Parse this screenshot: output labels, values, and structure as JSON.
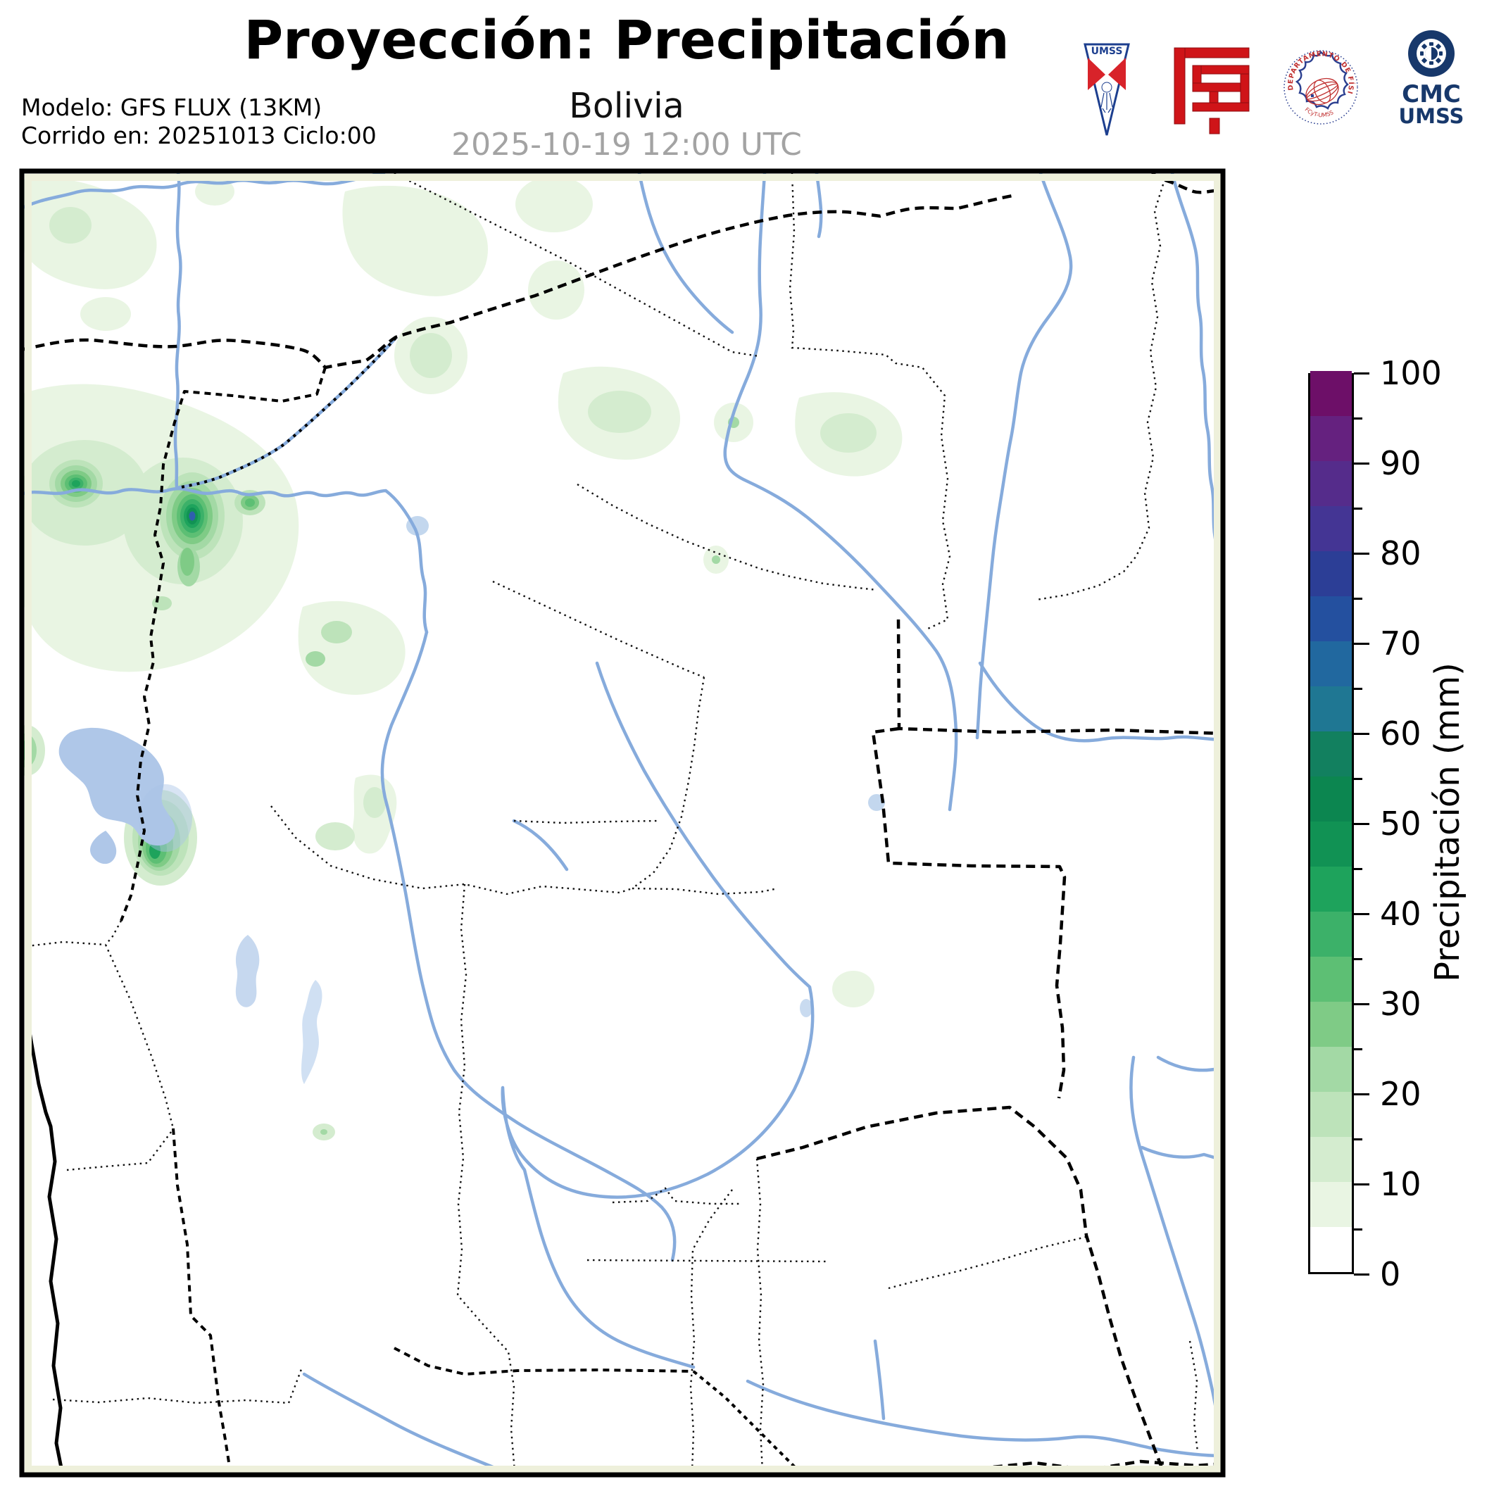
{
  "header": {
    "title": "Proyección: Precipitación",
    "subtitle": "Bolivia",
    "datetime": "2025-10-19 12:00 UTC",
    "model_line1": "Modelo: GFS FLUX (13KM)",
    "model_line2": "Corrido en: 20251013 Ciclo:00"
  },
  "logos": {
    "pennant_text": "UMSS",
    "seal_text_top": "DEPARTAMENTO DE FÍSICA",
    "seal_text_bottom": "FCyT-UMSS",
    "cmc_line1": "CMC",
    "cmc_line2": "UMSS"
  },
  "colorbar": {
    "label": "Precipitación (mm)",
    "min": 0,
    "max": 100,
    "major_tick_step": 10,
    "minor_tick_step": 5,
    "tick_labels": [
      "0",
      "10",
      "20",
      "30",
      "40",
      "50",
      "60",
      "70",
      "80",
      "90",
      "100"
    ],
    "segment_colors_bottom_to_top": [
      "#ffffff",
      "#e9f5e3",
      "#d4eccf",
      "#bde3ba",
      "#a3d9a5",
      "#7fcb86",
      "#5dbf74",
      "#3cb169",
      "#1ea35c",
      "#119254",
      "#0c8650",
      "#12805f",
      "#1f7793",
      "#21689f",
      "#24509f",
      "#2c3e96",
      "#443594",
      "#552c8b",
      "#65217f",
      "#6d0f68"
    ]
  },
  "map": {
    "region": "Bolivia",
    "background_color": "#ffffff",
    "margin_band_color": "#eef0db",
    "frame_color": "#000000",
    "river_color": "#86abdc",
    "lake_color": "#afc7e8",
    "border_country_style": "dashed",
    "border_department_style": "dotted",
    "precip_levels_mm": [
      5,
      10,
      15,
      20,
      25,
      30,
      35,
      40,
      45,
      50,
      55,
      60,
      65,
      70,
      75,
      80,
      85,
      90,
      95,
      100
    ]
  }
}
